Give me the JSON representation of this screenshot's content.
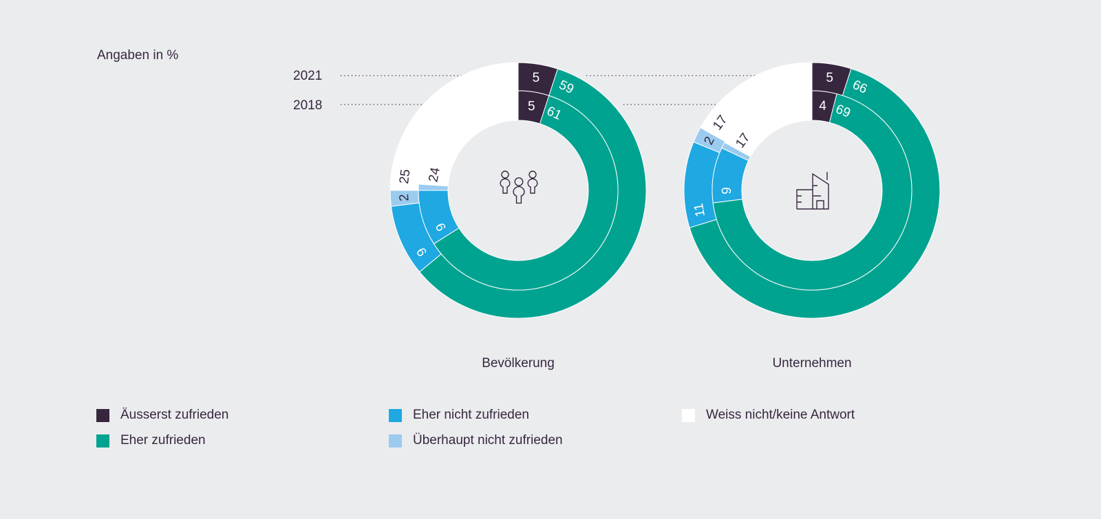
{
  "unit_label": "Angaben in %",
  "years": [
    "2021",
    "2018"
  ],
  "colors": {
    "Äusserst zufrieden": "#36273f",
    "Eher zufrieden": "#00a390",
    "Eher nicht zufrieden": "#1fa8e2",
    "Überhaupt nicht zufrieden": "#9bcbef",
    "Weiss nicht/keine Antwort": "#ffffff"
  },
  "legend": [
    "Äusserst zufrieden",
    "Eher zufrieden",
    "Eher nicht zufrieden",
    "Überhaupt nicht zufrieden",
    "Weiss nicht/keine Antwort"
  ],
  "chart_data": [
    {
      "type": "pie",
      "subtype": "double-donut",
      "title": "Bevölkerung",
      "center_icon": "people-icon",
      "categories": [
        "Äusserst zufrieden",
        "Eher zufrieden",
        "Eher nicht zufrieden",
        "Überhaupt nicht zufrieden",
        "Weiss nicht/keine Antwort"
      ],
      "series": [
        {
          "name": "2021",
          "ring": "outer",
          "values": [
            5,
            59,
            9,
            2,
            25
          ],
          "labels": [
            "5",
            "59",
            "9",
            "2",
            "25"
          ]
        },
        {
          "name": "2018",
          "ring": "inner",
          "values": [
            5,
            61,
            9,
            1,
            24
          ],
          "labels": [
            "5",
            "61",
            "9",
            "",
            "24"
          ]
        }
      ]
    },
    {
      "type": "pie",
      "subtype": "double-donut",
      "title": "Unternehmen",
      "center_icon": "building-icon",
      "categories": [
        "Äusserst zufrieden",
        "Eher zufrieden",
        "Eher nicht zufrieden",
        "Überhaupt nicht zufrieden",
        "Weiss nicht/keine Antwort"
      ],
      "series": [
        {
          "name": "2021",
          "ring": "outer",
          "values": [
            5,
            66,
            11,
            2,
            17
          ],
          "labels": [
            "5",
            "66",
            "11",
            "2",
            "17"
          ]
        },
        {
          "name": "2018",
          "ring": "inner",
          "values": [
            4,
            69,
            9,
            1,
            17
          ],
          "labels": [
            "4",
            "69",
            "9",
            "",
            "17"
          ]
        }
      ]
    }
  ]
}
